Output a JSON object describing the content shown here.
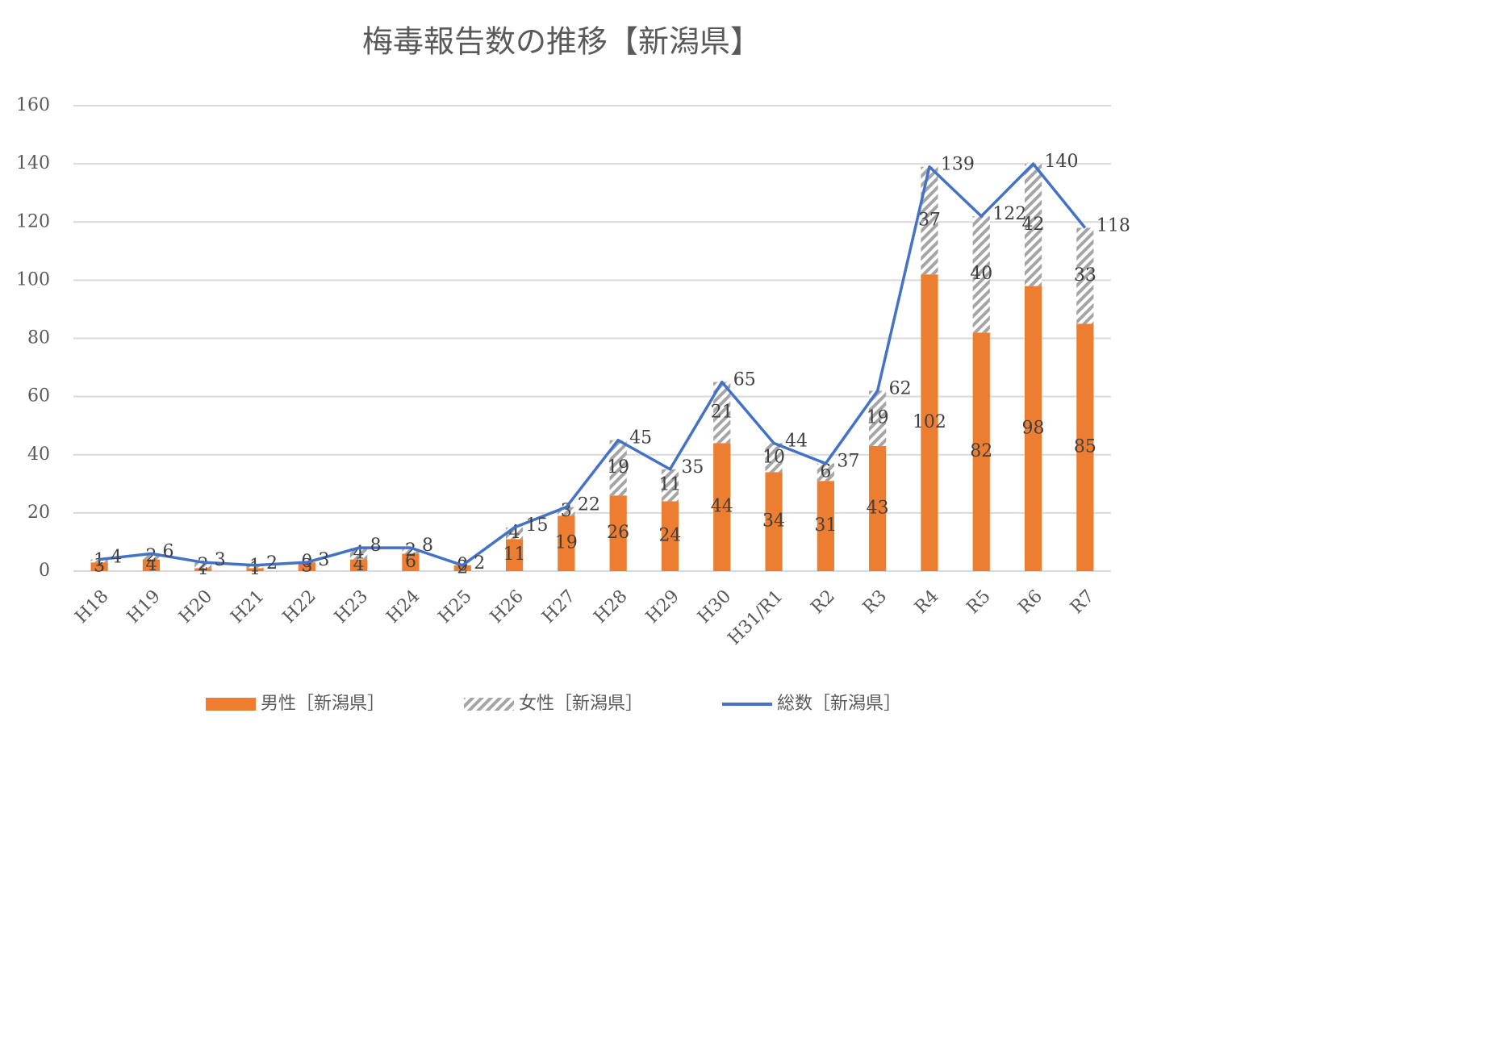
{
  "chart_data": {
    "type": "stacked-bar-line",
    "title": "梅毒報告数の推移【新潟県】",
    "categories": [
      "H18",
      "H19",
      "H20",
      "H21",
      "H22",
      "H23",
      "H24",
      "H25",
      "H26",
      "H27",
      "H28",
      "H29",
      "H30",
      "H31/R1",
      "R2",
      "R3",
      "R4",
      "R5",
      "R6",
      "R7"
    ],
    "series": [
      {
        "name": "男性［新潟県］",
        "kind": "bar",
        "color": "#ed7d31",
        "values": [
          3,
          4,
          1,
          1,
          3,
          4,
          6,
          2,
          11,
          19,
          26,
          24,
          44,
          34,
          31,
          43,
          102,
          82,
          98,
          85
        ]
      },
      {
        "name": "女性［新潟県］",
        "kind": "bar",
        "color": "#a5a5a5",
        "pattern": "hatch",
        "values": [
          1,
          2,
          2,
          1,
          0,
          4,
          2,
          0,
          4,
          3,
          19,
          11,
          21,
          10,
          6,
          19,
          37,
          40,
          42,
          33
        ]
      },
      {
        "name": "総数［新潟県］",
        "kind": "line",
        "color": "#4472c4",
        "values": [
          4,
          6,
          3,
          2,
          3,
          8,
          8,
          2,
          15,
          22,
          45,
          35,
          65,
          44,
          37,
          62,
          139,
          122,
          140,
          118
        ]
      }
    ],
    "ylim": [
      0,
      160
    ],
    "yticks": [
      0,
      20,
      40,
      60,
      80,
      100,
      120,
      140,
      160
    ],
    "grid": true,
    "legend": "bottom"
  }
}
